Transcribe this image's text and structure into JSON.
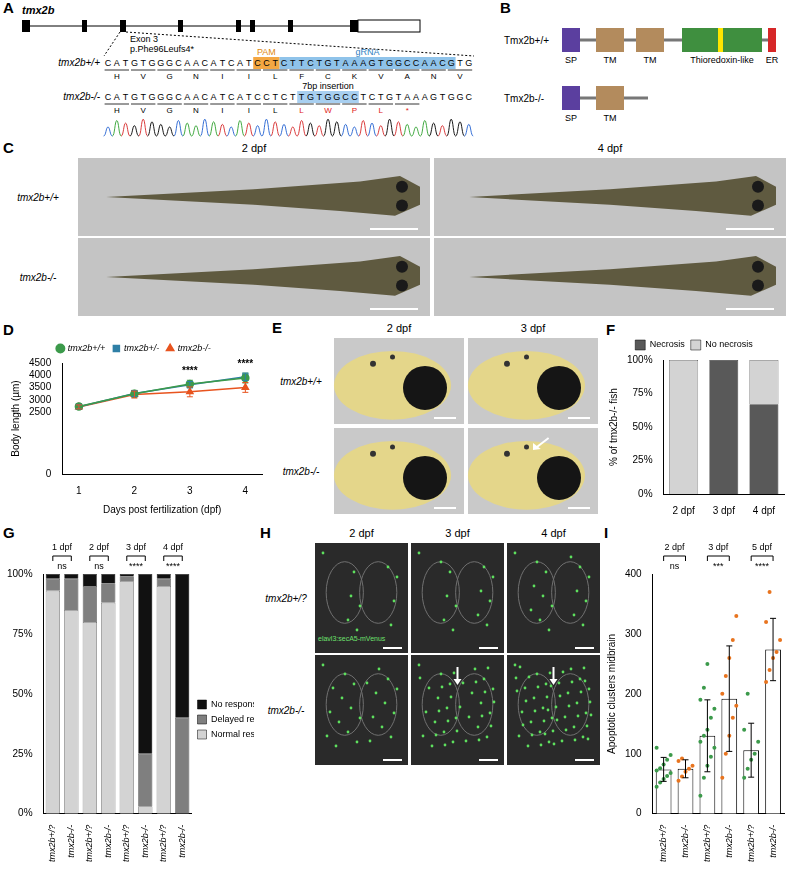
{
  "panels": {
    "A": {
      "letter": "A",
      "gene": "tmx2b",
      "exon": "Exon 3",
      "mutation": "p.Phe96Leufs4*",
      "pam_label": "PAM",
      "grna_label": "gRNA",
      "insertion_label": "7bp insertion",
      "wildtype": {
        "genotype": "tmx2b+/+",
        "before": "CATGTGGGCAACATCAT",
        "pam": "CCT",
        "grna": "CTTCTGTAAAGTGGCCAACG",
        "after": "TG",
        "amino_acids": [
          "H",
          "V",
          "G",
          "N",
          "I",
          "I",
          "L",
          "F",
          "C",
          "K",
          "V",
          "A",
          "N",
          "V"
        ]
      },
      "mutant": {
        "genotype": "tmx2b-/-",
        "before": "CATGTGGGCAACATCATCCTCT",
        "insertion": "TGTGGCC",
        "after": "TCTGTAAAGTGGC",
        "amino_acids": [
          "H",
          "V",
          "G",
          "N",
          "I",
          "I",
          "L"
        ],
        "changed_amino_acids": [
          "L",
          "W",
          "P",
          "L",
          "*"
        ]
      }
    },
    "B": {
      "letter": "B",
      "rows": [
        {
          "label": "Tmx2b+/+",
          "domains": [
            {
              "label": "SP",
              "color": "#5b3f9f"
            },
            {
              "label": "TM",
              "color": "#b38b5d"
            },
            {
              "label": "TM",
              "color": "#b38b5d"
            },
            {
              "label": "Thioredoxin-like",
              "color": "#3f8f3f"
            },
            {
              "label": "ER",
              "color": "#d62728"
            }
          ]
        },
        {
          "label": "Tmx2b-/-",
          "domains": [
            {
              "label": "SP",
              "color": "#5b3f9f"
            },
            {
              "label": "TM",
              "color": "#b38b5d"
            }
          ]
        }
      ]
    },
    "C": {
      "letter": "C",
      "columns": [
        "2 dpf",
        "4 dpf"
      ],
      "rows": [
        "tmx2b+/+",
        "tmx2b-/-"
      ]
    },
    "E": {
      "letter": "E",
      "columns": [
        "2 dpf",
        "3 dpf"
      ],
      "rows": [
        "tmx2b+/+",
        "tmx2b-/-"
      ]
    },
    "H": {
      "letter": "H",
      "columns": [
        "2 dpf",
        "3 dpf",
        "4 dpf"
      ],
      "rows": [
        "tmx2b+/?",
        "tmx2b-/-"
      ],
      "marker_label": "elavl3:secA5-mVenus"
    }
  },
  "chart_data": [
    {
      "panel": "D",
      "type": "line",
      "x": [
        1,
        2,
        3,
        4
      ],
      "xlim": [
        0.7,
        4.3
      ],
      "xticks": [
        1,
        2,
        3,
        4
      ],
      "ylim": [
        0,
        4500
      ],
      "yticks": [
        0,
        2500,
        3000,
        3500,
        4000,
        4500
      ],
      "xlabel": "Days post fertilization (dpf)",
      "ylabel": "Body length (µm)",
      "grid": false,
      "legend": "top",
      "series": [
        {
          "name": "tmx2b+/+",
          "color": "#3c9a4b",
          "marker": "circle",
          "values": [
            2740,
            3250,
            3650,
            3890
          ],
          "errors": [
            100,
            140,
            150,
            200
          ]
        },
        {
          "name": "tmx2b+/-",
          "color": "#2f7fa6",
          "marker": "square",
          "values": [
            2730,
            3260,
            3620,
            3940
          ],
          "errors": [
            90,
            120,
            130,
            150
          ]
        },
        {
          "name": "tmx2b-/-",
          "color": "#e8541f",
          "marker": "triangle",
          "values": [
            2720,
            3220,
            3330,
            3510
          ],
          "errors": [
            80,
            140,
            200,
            200
          ]
        }
      ],
      "annotations": [
        {
          "x": 3,
          "text": "****"
        },
        {
          "x": 4,
          "text": "****"
        }
      ]
    },
    {
      "panel": "F",
      "type": "bar",
      "stacked": true,
      "categories": [
        "2 dpf",
        "3 dpf",
        "4 dpf"
      ],
      "ylim": [
        0,
        100
      ],
      "yticks": [
        {
          "value": 0,
          "label": "0%"
        },
        {
          "value": 25,
          "label": "25%"
        },
        {
          "value": 50,
          "label": "50%"
        },
        {
          "value": 75,
          "label": "75%"
        },
        {
          "value": 100,
          "label": "100%"
        }
      ],
      "ylabel": "% of tmx2b-/- fish",
      "grid": false,
      "legend": "top",
      "series": [
        {
          "name": "Necrosis",
          "color": "#595959",
          "values": [
            0,
            100,
            67
          ]
        },
        {
          "name": "No necrosis",
          "color": "#d3d3d3",
          "values": [
            100,
            0,
            33
          ]
        }
      ]
    },
    {
      "panel": "G",
      "type": "bar",
      "stacked": true,
      "categories": [
        "tmx2b+/?",
        "tmx2b-/-",
        "tmx2b+/?",
        "tmx2b-/-",
        "tmx2b+/?",
        "tmx2b-/-",
        "tmx2b+/?",
        "tmx2b-/-"
      ],
      "ylim": [
        0,
        100
      ],
      "yticks": [
        {
          "value": 0,
          "label": "0%"
        },
        {
          "value": 25,
          "label": "25%"
        },
        {
          "value": 50,
          "label": "50%"
        },
        {
          "value": 75,
          "label": "75%"
        },
        {
          "value": 100,
          "label": "100%"
        }
      ],
      "grid": false,
      "legend": "right",
      "groups": [
        {
          "label": "1 dpf",
          "significance": "ns"
        },
        {
          "label": "2 dpf",
          "significance": "ns"
        },
        {
          "label": "3 dpf",
          "significance": "****"
        },
        {
          "label": "4 dpf",
          "significance": "****"
        }
      ],
      "series": [
        {
          "name": "Normal response",
          "color": "#d3d3d3",
          "values": [
            93,
            85,
            80,
            88,
            97,
            3,
            95,
            0
          ]
        },
        {
          "name": "Delayed response",
          "color": "#7f7f7f",
          "values": [
            5,
            13,
            15,
            8,
            2,
            22,
            3,
            40
          ]
        },
        {
          "name": "No response",
          "color": "#111111",
          "values": [
            2,
            2,
            5,
            4,
            1,
            75,
            2,
            60
          ]
        }
      ]
    },
    {
      "panel": "I",
      "type": "bar",
      "categories": [
        "tmx2b+/?",
        "tmx2b-/-",
        "tmx2b+/?",
        "tmx2b-/-",
        "tmx2b+/?",
        "tmx2b-/-"
      ],
      "ylim": [
        0,
        400
      ],
      "yticks": [
        0,
        100,
        200,
        300,
        400
      ],
      "ylabel": "Apoptotic clusters midbrain",
      "grid": false,
      "groups": [
        {
          "label": "2 dpf",
          "significance": "ns"
        },
        {
          "label": "3 dpf",
          "significance": "***"
        },
        {
          "label": "5 dpf",
          "significance": "****"
        }
      ],
      "series": [
        {
          "type": "bar",
          "color": "#ffffff",
          "values": [
            74,
            75,
            130,
            192,
            106,
            274
          ],
          "errors": [
            20,
            15,
            60,
            88,
            45,
            52
          ]
        },
        {
          "type": "scatter",
          "colors": [
            "#3c9a4b",
            "#e8741f",
            "#3c9a4b",
            "#e8741f",
            "#3c9a4b",
            "#e8741f"
          ],
          "values": [
            [
              45,
              52,
              58,
              63,
              68,
              72,
              76,
              82,
              90,
              98,
              110
            ],
            [
              55,
              62,
              70,
              75,
              80,
              88,
              92
            ],
            [
              30,
              60,
              80,
              95,
              110,
              120,
              130,
              140,
              160,
              175,
              190,
              210,
              250
            ],
            [
              60,
              100,
              130,
              160,
              180,
              200,
              230,
              260,
              290,
              330
            ],
            [
              60,
              75,
              90,
              100,
              120,
              140,
              200
            ],
            [
              220,
              240,
              260,
              270,
              290,
              320,
              370
            ]
          ]
        }
      ]
    }
  ]
}
